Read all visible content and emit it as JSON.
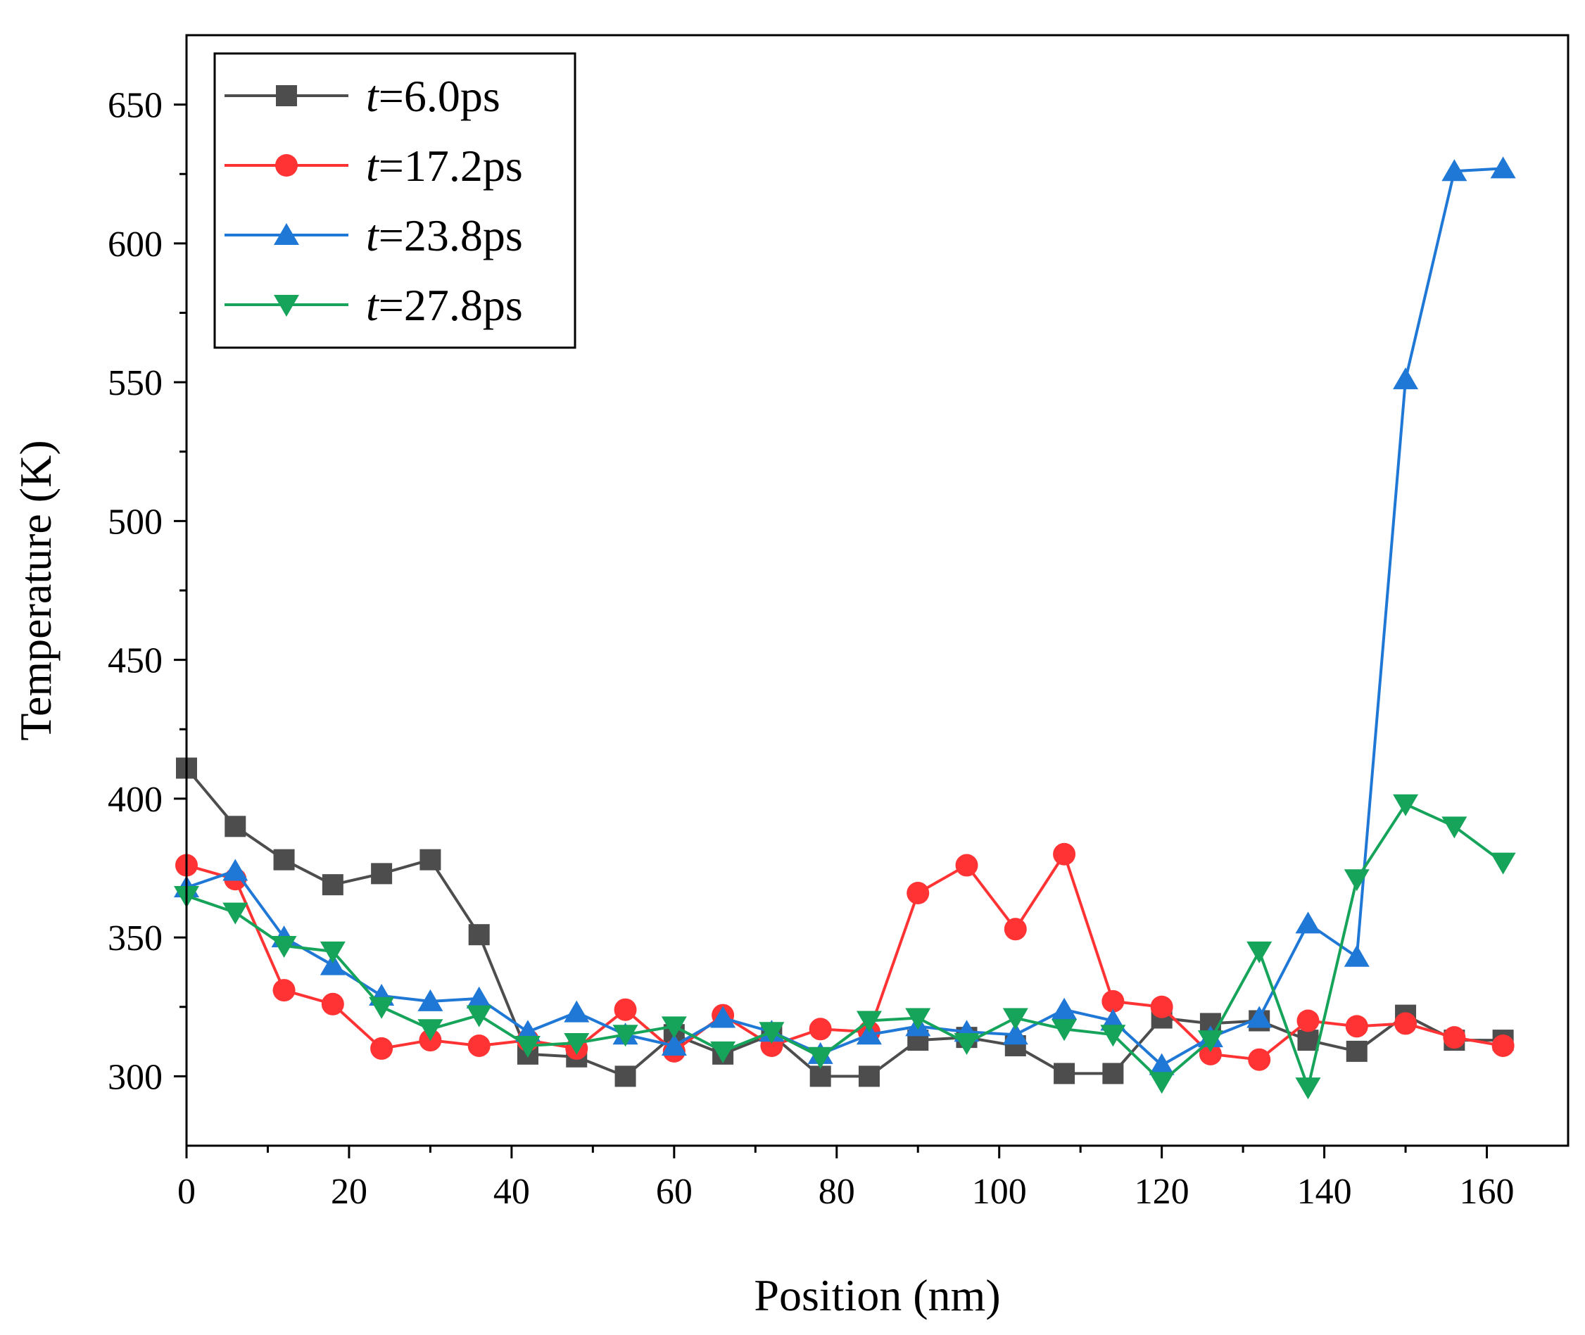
{
  "chart_data": {
    "type": "line",
    "title": "",
    "xlabel": "Position (nm)",
    "ylabel": "Temperature (K)",
    "xlim": [
      0,
      170
    ],
    "ylim": [
      275,
      675
    ],
    "xticks": [
      0,
      20,
      40,
      60,
      80,
      100,
      120,
      140,
      160
    ],
    "yticks": [
      300,
      350,
      400,
      450,
      500,
      550,
      600,
      650
    ],
    "legend_position": "top-left",
    "x": [
      0,
      6,
      12,
      18,
      24,
      30,
      36,
      42,
      48,
      54,
      60,
      66,
      72,
      78,
      84,
      90,
      96,
      102,
      108,
      114,
      120,
      126,
      132,
      138,
      144,
      150,
      156,
      162
    ],
    "series": [
      {
        "name": "t=6.0ps",
        "label_italic": "t",
        "label_rest": "=6.0ps",
        "color": "#4d4d4d",
        "marker": "square",
        "values": [
          411,
          390,
          378,
          369,
          373,
          378,
          351,
          308,
          307,
          300,
          315,
          308,
          315,
          300,
          300,
          313,
          314,
          311,
          301,
          301,
          321,
          319,
          320,
          313,
          309,
          322,
          313,
          313
        ]
      },
      {
        "name": "t=17.2ps",
        "label_italic": "t",
        "label_rest": "=17.2ps",
        "color": "#ff3333",
        "marker": "circle",
        "values": [
          376,
          371,
          331,
          326,
          310,
          313,
          311,
          313,
          310,
          324,
          309,
          322,
          311,
          317,
          316,
          366,
          376,
          353,
          380,
          327,
          325,
          308,
          306,
          320,
          318,
          319,
          314,
          311
        ]
      },
      {
        "name": "t=23.8ps",
        "label_italic": "t",
        "label_rest": "=23.8ps",
        "color": "#1f77d6",
        "marker": "triangle-up",
        "values": [
          368,
          374,
          350,
          340,
          329,
          327,
          328,
          316,
          323,
          315,
          311,
          321,
          316,
          308,
          315,
          318,
          316,
          315,
          324,
          320,
          304,
          314,
          321,
          355,
          343,
          551,
          626,
          627
        ]
      },
      {
        "name": "t=27.8ps",
        "label_italic": "t",
        "label_rest": "=27.8ps",
        "color": "#16a35a",
        "marker": "triangle-down",
        "values": [
          365,
          359,
          347,
          345,
          325,
          317,
          322,
          311,
          312,
          315,
          318,
          309,
          316,
          307,
          320,
          321,
          312,
          321,
          317,
          315,
          298,
          313,
          345,
          296,
          371,
          398,
          390,
          377
        ]
      }
    ]
  }
}
